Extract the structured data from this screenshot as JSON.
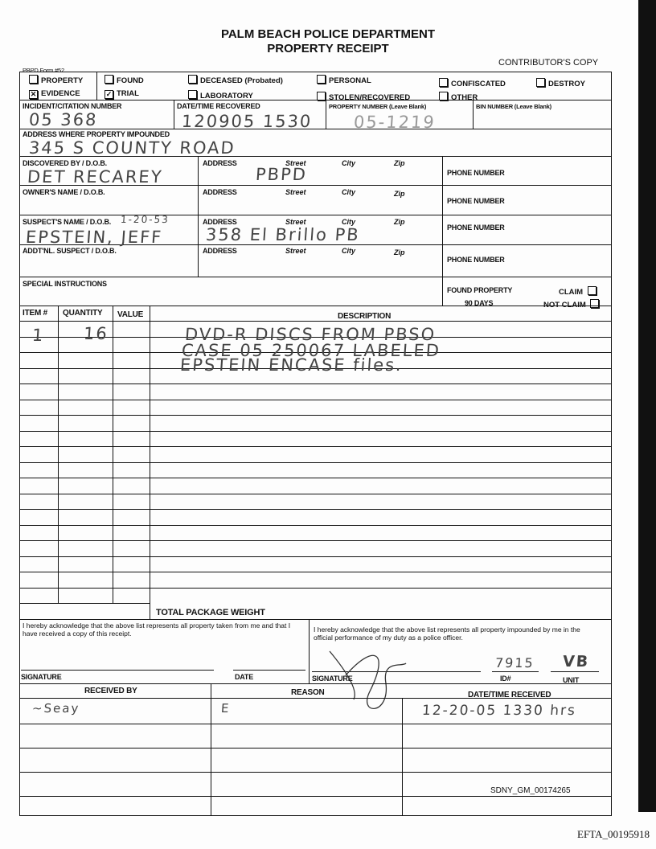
{
  "header": {
    "title": "PALM BEACH POLICE DEPARTMENT",
    "subtitle": "PROPERTY RECEIPT",
    "form_number": "PBPD Form #52",
    "copy": "CONTRIBUTOR'S COPY"
  },
  "checkboxes": [
    {
      "label": "PROPERTY",
      "checked": false
    },
    {
      "label": "FOUND",
      "checked": false
    },
    {
      "label": "DECEASED (Probated)",
      "checked": false
    },
    {
      "label": "PERSONAL",
      "checked": false
    },
    {
      "label": "CONFISCATED",
      "checked": false
    },
    {
      "label": "DESTROY",
      "checked": false
    },
    {
      "label": "EVIDENCE",
      "checked": true
    },
    {
      "label": "TRIAL",
      "checked": true
    },
    {
      "label": "LABORATORY",
      "checked": false
    },
    {
      "label": "STOLEN/RECOVERED",
      "checked": false
    },
    {
      "label": "OTHER",
      "checked": false
    }
  ],
  "fields": {
    "incident_label": "INCIDENT/CITATION NUMBER",
    "incident_value": "05 368",
    "date_label": "DATE/TIME RECOVERED",
    "date_value": "120905 1530",
    "property_label": "PROPERTY NUMBER (Leave Blank)",
    "property_value": "05-1219",
    "bin_label": "BIN NUMBER (Leave Blank)",
    "address_label": "ADDRESS WHERE PROPERTY IMPOUNDED",
    "address_value": "345 S COUNTY ROAD"
  },
  "people": [
    {
      "label": "DISCOVERED BY / D.O.B.",
      "name": "DET RECAREY",
      "address": "PBPD"
    },
    {
      "label": "OWNER'S NAME / D.O.B.",
      "name": "",
      "address": ""
    },
    {
      "label": "SUSPECT'S NAME / D.O.B.",
      "dob": "1-20-53",
      "name": "EPSTEIN, JEFF",
      "address": "358 El Brillo PB"
    },
    {
      "label": "ADDT'NL. SUSPECT / D.O.B.",
      "name": "",
      "address": ""
    }
  ],
  "address_sub": {
    "address": "ADDRESS",
    "street": "Street",
    "city": "City",
    "zip": "Zip",
    "phone": "PHONE NUMBER"
  },
  "special": {
    "label": "SPECIAL INSTRUCTIONS",
    "found": "FOUND PROPERTY",
    "days": "90 DAYS",
    "claim": "CLAIM",
    "not_claim": "NOT CLAIM"
  },
  "items": {
    "headers": [
      "ITEM #",
      "QUANTITY",
      "VALUE",
      "DESCRIPTION"
    ],
    "rows": [
      {
        "item": "1",
        "qty": "16",
        "desc": "DVD-R DISCS FROM PBSO"
      },
      {
        "item": "",
        "qty": "",
        "desc": "CASE 05 250067 LABELED"
      },
      {
        "item": "",
        "qty": "",
        "desc": "EPSTEIN ENCASE files."
      }
    ],
    "total_weight": "TOTAL PACKAGE WEIGHT"
  },
  "ack": {
    "left": "I hereby acknowledge that the above list represents all property taken from me and that I have received a copy of this receipt.",
    "right": "I hereby acknowledge that the above list represents all property impounded by me in the official performance of my duty as a police officer.",
    "signature": "SIGNATURE",
    "date": "DATE",
    "id": "ID#",
    "unit": "UNIT",
    "id_value": "7915",
    "unit_value": "VB"
  },
  "received": {
    "headers": [
      "RECEIVED BY",
      "REASON",
      "DATE/TIME RECEIVED"
    ],
    "rows": [
      {
        "by": "~Seay",
        "reason": "E",
        "datetime": "12-20-05 1330 hrs"
      }
    ]
  },
  "bates": "SDNY_GM_00174265",
  "footer": "EFTA_00195918"
}
